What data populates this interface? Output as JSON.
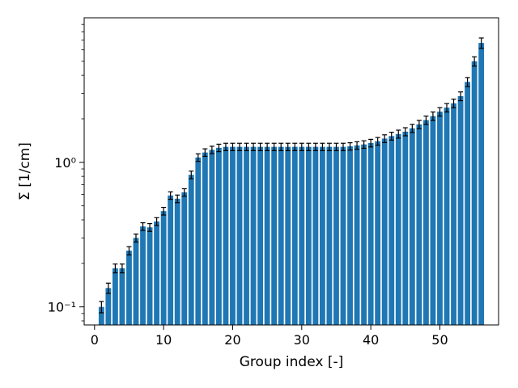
{
  "chart_data": {
    "type": "bar",
    "title": "",
    "xlabel": "Group index [-]",
    "ylabel": "Σ [1/cm]",
    "yscale": "log",
    "xlim": [
      -1.5,
      58.5
    ],
    "ylim": [
      0.075,
      10.0
    ],
    "grid": false,
    "bar_color": "#1f77b4",
    "errorbar_color": "#000000",
    "x_ticks": [
      0,
      10,
      20,
      30,
      40,
      50
    ],
    "x_tick_labels": [
      "0",
      "10",
      "20",
      "30",
      "40",
      "50"
    ],
    "y_ticks": [
      0.1,
      1.0
    ],
    "y_tick_labels": [
      "10⁻¹",
      "10⁰"
    ],
    "x": [
      1,
      2,
      3,
      4,
      5,
      6,
      7,
      8,
      9,
      10,
      11,
      12,
      13,
      14,
      15,
      16,
      17,
      18,
      19,
      20,
      21,
      22,
      23,
      24,
      25,
      26,
      27,
      28,
      29,
      30,
      31,
      32,
      33,
      34,
      35,
      36,
      37,
      38,
      39,
      40,
      41,
      42,
      43,
      44,
      45,
      46,
      47,
      48,
      49,
      50,
      51,
      52,
      53,
      54,
      55,
      56
    ],
    "values": [
      0.1,
      0.135,
      0.185,
      0.185,
      0.245,
      0.3,
      0.36,
      0.355,
      0.39,
      0.46,
      0.59,
      0.56,
      0.62,
      0.82,
      1.08,
      1.17,
      1.22,
      1.26,
      1.28,
      1.28,
      1.28,
      1.28,
      1.28,
      1.28,
      1.28,
      1.28,
      1.28,
      1.28,
      1.28,
      1.28,
      1.28,
      1.28,
      1.28,
      1.28,
      1.28,
      1.28,
      1.29,
      1.31,
      1.33,
      1.36,
      1.4,
      1.46,
      1.52,
      1.57,
      1.63,
      1.72,
      1.83,
      1.96,
      2.09,
      2.24,
      2.39,
      2.56,
      2.87,
      3.6,
      5.0,
      6.7
    ],
    "errors": [
      0.009,
      0.011,
      0.013,
      0.013,
      0.016,
      0.019,
      0.022,
      0.022,
      0.024,
      0.028,
      0.035,
      0.034,
      0.037,
      0.05,
      0.065,
      0.07,
      0.072,
      0.075,
      0.075,
      0.075,
      0.075,
      0.075,
      0.075,
      0.075,
      0.075,
      0.075,
      0.075,
      0.075,
      0.075,
      0.075,
      0.075,
      0.075,
      0.075,
      0.075,
      0.075,
      0.075,
      0.076,
      0.078,
      0.08,
      0.082,
      0.085,
      0.09,
      0.095,
      0.1,
      0.105,
      0.11,
      0.12,
      0.13,
      0.14,
      0.15,
      0.16,
      0.175,
      0.2,
      0.26,
      0.37,
      0.55
    ]
  }
}
